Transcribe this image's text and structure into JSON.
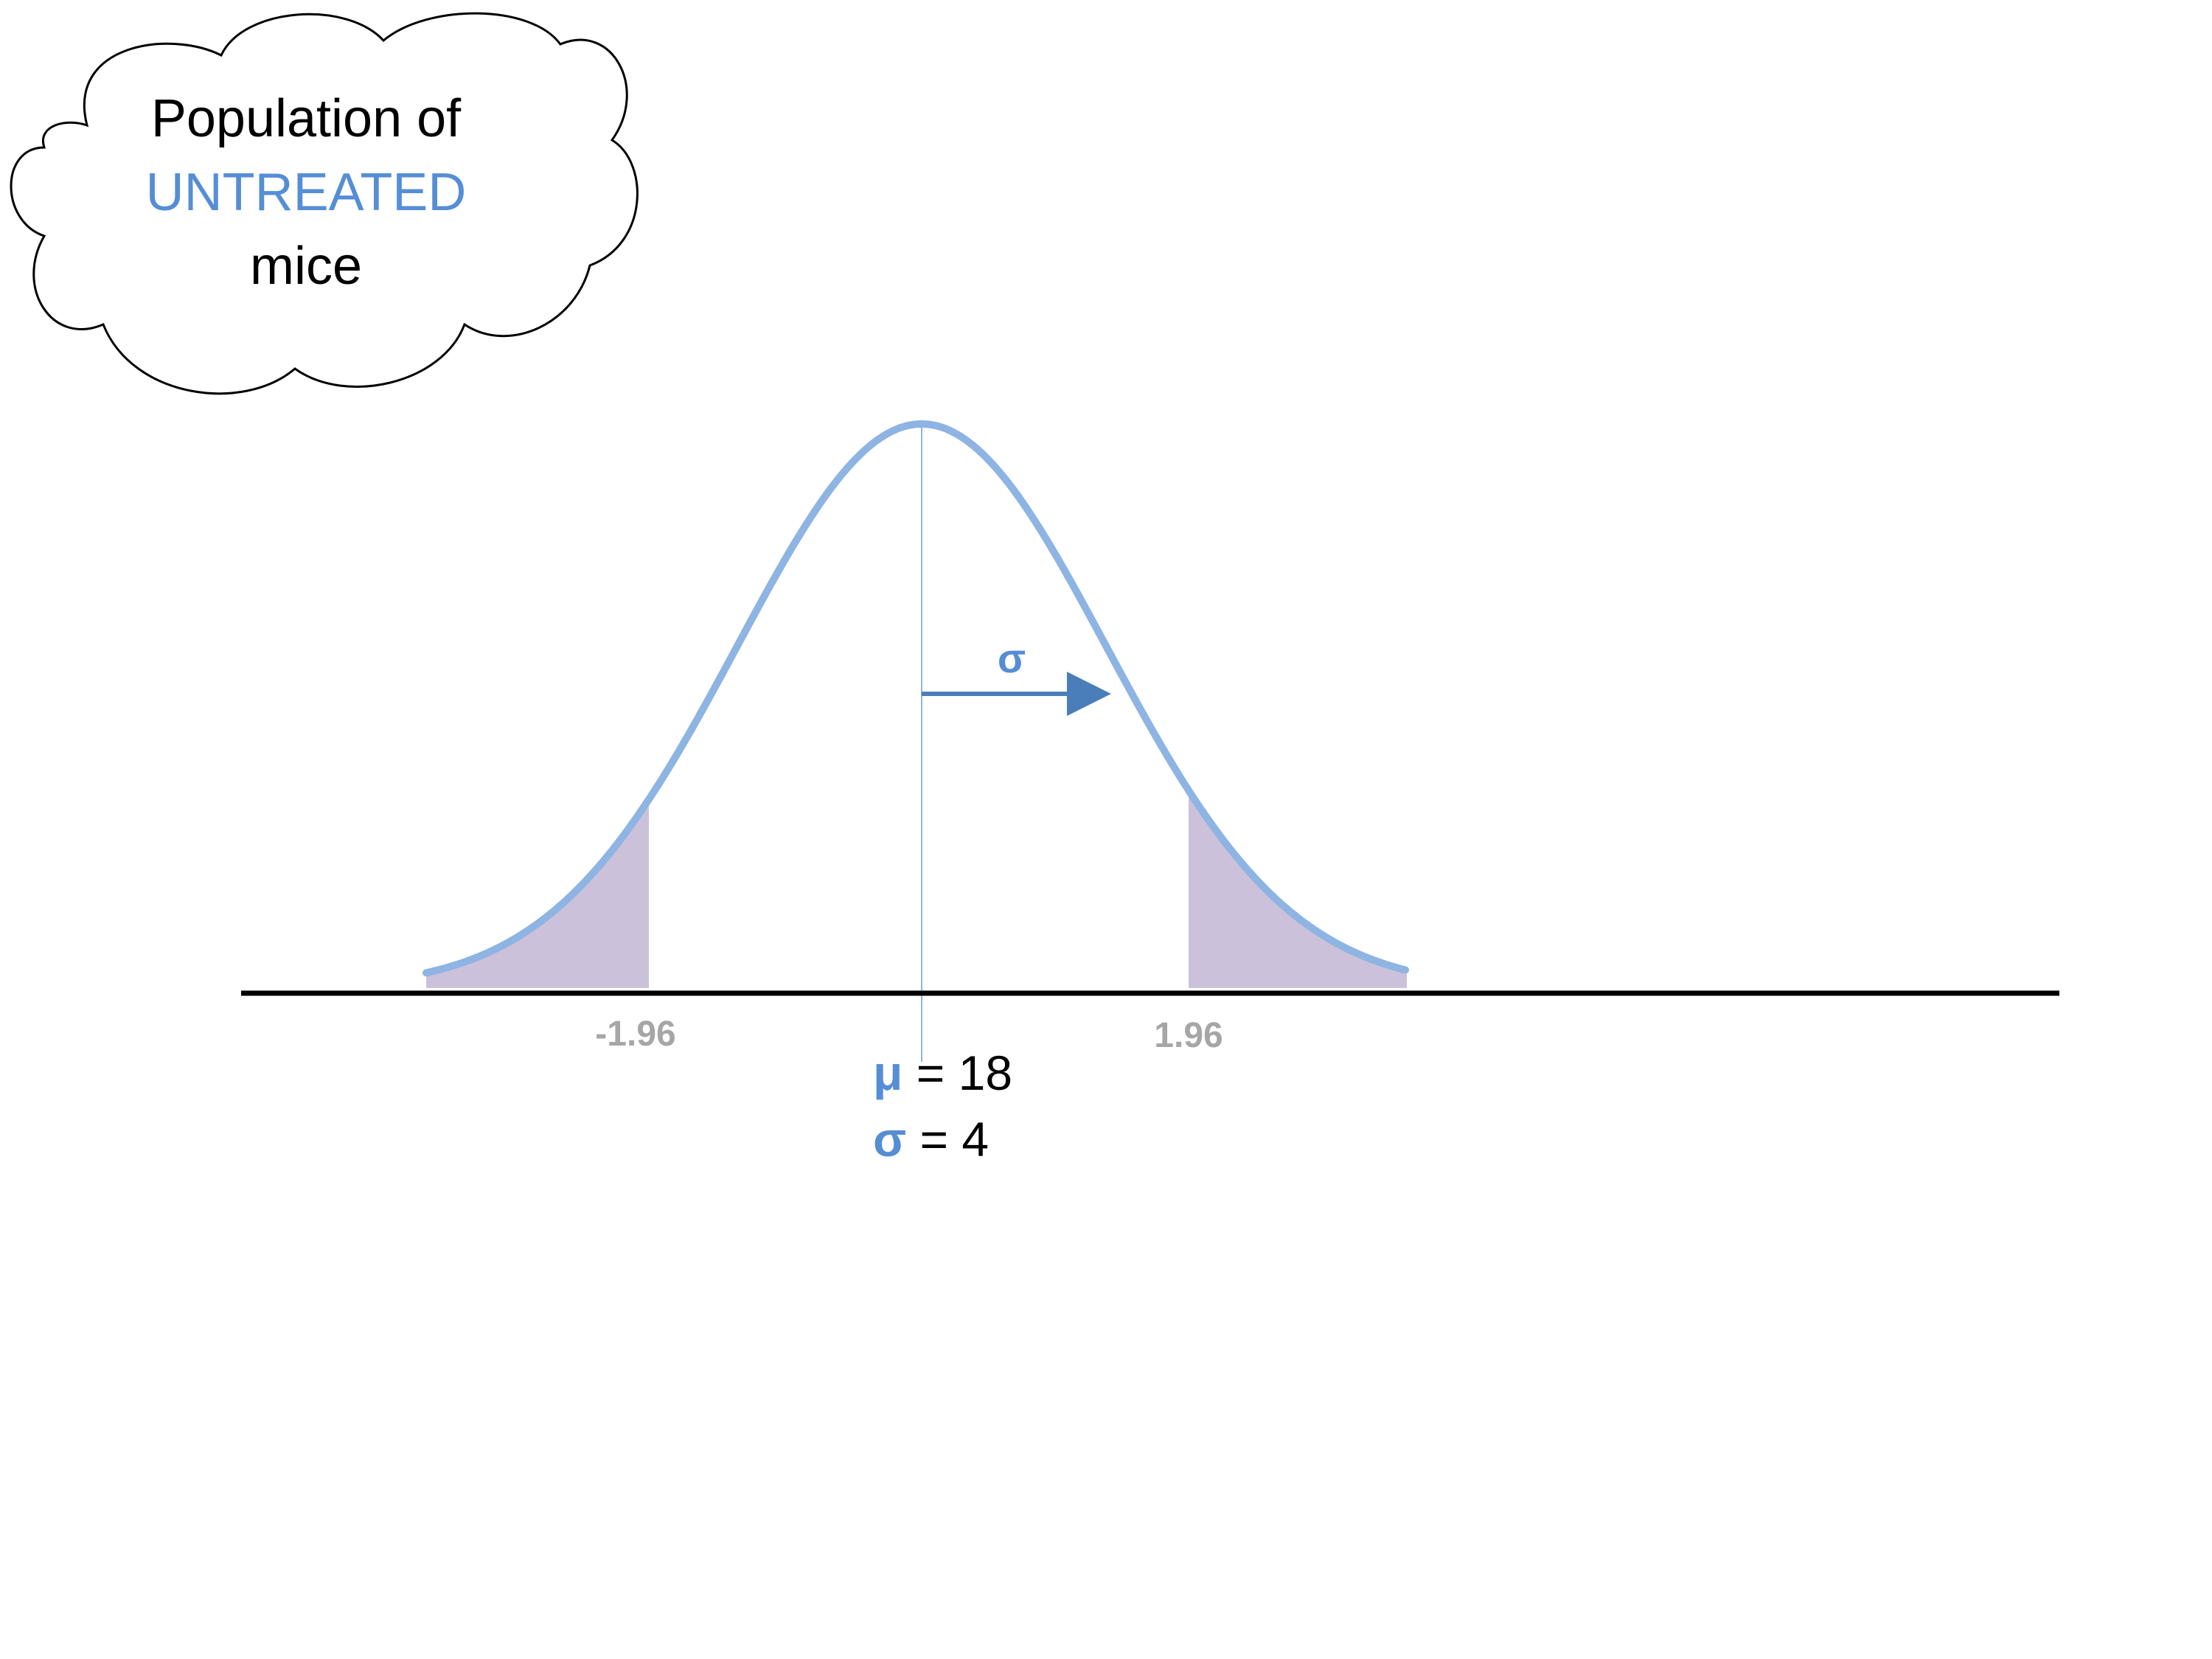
{
  "cloud": {
    "line1": "Population of",
    "line2": "UNTREATED",
    "line3": "mice"
  },
  "curve": {
    "sigma_arrow_label": "σ",
    "left_cutoff_label": "-1.96",
    "right_cutoff_label": "1.96"
  },
  "parameters": {
    "mu_symbol": "μ",
    "mu_text": " = 18",
    "sigma_symbol": "σ",
    "sigma_text": " = 4"
  },
  "colors": {
    "curve": "#8eb4e3",
    "accent_text": "#558ed5",
    "arrow": "#4a7ebb",
    "tail_fill": "#ccc1da",
    "tick_label": "#a6a6a6",
    "axis": "#000000",
    "mean_line": "#8eb4e3"
  }
}
